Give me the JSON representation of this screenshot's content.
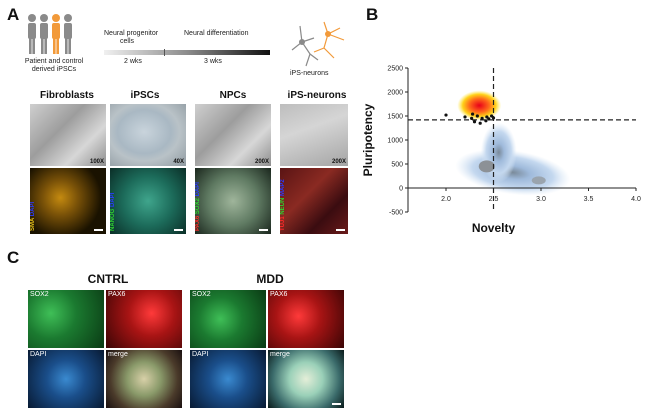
{
  "panels": {
    "a": "A",
    "b": "B",
    "c": "C"
  },
  "panel_a": {
    "source_line1": "Patient and control",
    "source_line2": "derived iPSCs",
    "stage1_line1": "Neural progenitor",
    "stage1_line2": "cells",
    "stage2": "Neural differentiation",
    "duration1": "2 wks",
    "duration2": "3 wks",
    "target": "iPS-neurons",
    "columns": [
      "Fibroblasts",
      "iPSCs",
      "NPCs",
      "iPS-neurons"
    ],
    "magnifications": [
      "100X",
      "40X",
      "200X",
      "200X"
    ],
    "fluor_labels": [
      [
        {
          "text": "SMA",
          "color": "#e8c21a"
        },
        {
          "text": "DAPI",
          "color": "#2b3cff"
        }
      ],
      [
        {
          "text": "NANOG",
          "color": "#2fd12f"
        },
        {
          "text": "DAPI",
          "color": "#2b3cff"
        }
      ],
      [
        {
          "text": "PAX6",
          "color": "#ff2a2a"
        },
        {
          "text": "SOX2",
          "color": "#2fd12f"
        },
        {
          "text": "DAPI",
          "color": "#2b3cff"
        }
      ],
      [
        {
          "text": "TUJ1",
          "color": "#ff2a2a"
        },
        {
          "text": "NEUN",
          "color": "#2fd12f"
        },
        {
          "text": "MAP2",
          "color": "#2b3cff"
        }
      ]
    ],
    "colors": {
      "orange": "#f29a3a",
      "gray": "#8a8a8a"
    }
  },
  "chart_data": {
    "type": "scatter",
    "xlabel": "Novelty",
    "ylabel": "Pluripotency",
    "xlim": [
      1.6,
      4.0
    ],
    "ylim": [
      -500,
      2500
    ],
    "x_ticks": [
      "2.0",
      "2.5",
      "3.0",
      "3.5",
      "4.0"
    ],
    "y_ticks": [
      "2500",
      "2000",
      "1500",
      "1000",
      "500",
      "0",
      "-500"
    ],
    "reference_lines": {
      "x": 2.5,
      "y": 1420
    },
    "hotspot_center": [
      2.35,
      1720
    ],
    "points": [
      [
        2.0,
        1520
      ],
      [
        2.2,
        1480
      ],
      [
        2.27,
        1450
      ],
      [
        2.33,
        1500
      ],
      [
        2.38,
        1450
      ],
      [
        2.43,
        1480
      ],
      [
        2.48,
        1500
      ],
      [
        2.3,
        1380
      ],
      [
        2.36,
        1350
      ],
      [
        2.42,
        1400
      ],
      [
        2.45,
        1440
      ],
      [
        2.5,
        1460
      ],
      [
        2.28,
        1540
      ]
    ],
    "density_cluster_center": [
      2.45,
      450
    ]
  },
  "panel_c": {
    "groups": [
      "CNTRL",
      "MDD"
    ],
    "tile_labels": [
      "SOX2",
      "PAX6",
      "DAPI",
      "merge"
    ]
  }
}
